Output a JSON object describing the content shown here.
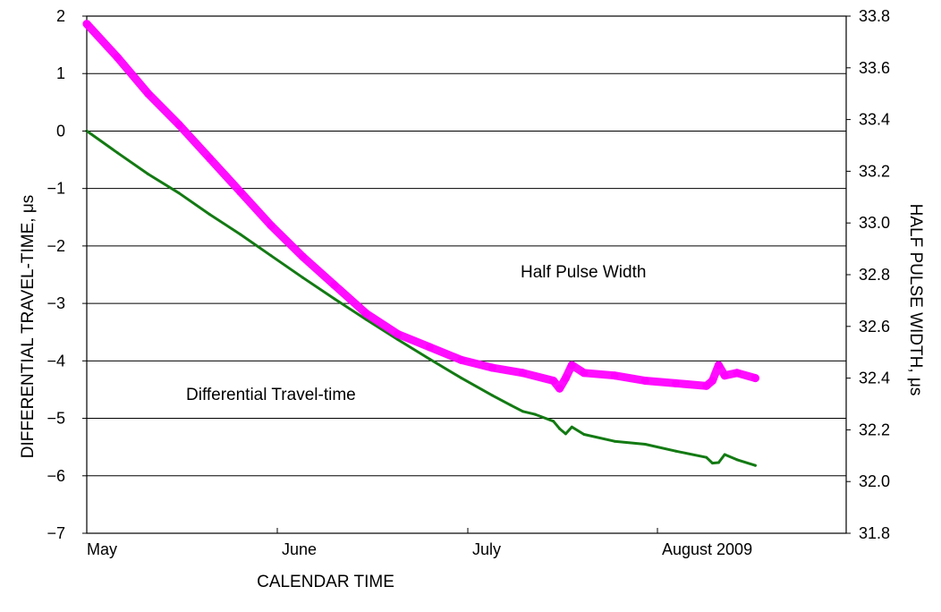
{
  "chart_data": {
    "type": "line",
    "xlabel": "CALENDAR TIME",
    "ylabel_left": "DIFFERENTIAL TRAVEL-TIME, μs",
    "ylabel_right": "HALF PULSE WIDTH, μs",
    "x_tick_labels": [
      "May",
      "June",
      "July",
      "August 2009"
    ],
    "x_unit": "days since start of May 2009",
    "x_range": [
      0,
      120
    ],
    "y_left_range": [
      -7,
      2
    ],
    "y_left_ticks": [
      "2",
      "1",
      "0",
      "−1",
      "−2",
      "−3",
      "−4",
      "−5",
      "−6",
      "−7"
    ],
    "y_right_range": [
      31.8,
      33.8
    ],
    "y_right_ticks": [
      "33.8",
      "33.6",
      "33.4",
      "33.2",
      "33.0",
      "32.8",
      "32.6",
      "32.4",
      "32.2",
      "32.0",
      "31.8"
    ],
    "grid": "horizontal",
    "annotations": {
      "half_pulse": "Half Pulse Width",
      "diff_travel": "Differential Travel-time"
    },
    "series": [
      {
        "name": "Differential Travel-time",
        "axis": "left",
        "color": "#137a13",
        "x": [
          0,
          5,
          10,
          15,
          20,
          25,
          30,
          35,
          40,
          45,
          50,
          55,
          60,
          65,
          68,
          70,
          72,
          75,
          76,
          77,
          78,
          80,
          85,
          90,
          95,
          100,
          101,
          102,
          103,
          105,
          108
        ],
        "y": [
          0,
          -0.38,
          -0.75,
          -1.08,
          -1.45,
          -1.8,
          -2.17,
          -2.55,
          -2.92,
          -3.28,
          -3.63,
          -3.97,
          -4.3,
          -4.6,
          -4.77,
          -4.88,
          -4.93,
          -5.05,
          -5.18,
          -5.27,
          -5.15,
          -5.28,
          -5.4,
          -5.45,
          -5.57,
          -5.68,
          -5.78,
          -5.77,
          -5.63,
          -5.72,
          -5.82
        ]
      },
      {
        "name": "Half Pulse Width",
        "axis": "right",
        "color": "#ff00ff",
        "x": [
          0,
          5,
          10,
          15,
          20,
          25,
          30,
          35,
          40,
          45,
          50,
          55,
          60,
          65,
          70,
          75,
          76,
          77,
          78,
          80,
          85,
          90,
          95,
          100,
          101,
          102,
          103,
          105,
          108
        ],
        "y": [
          33.77,
          33.64,
          33.5,
          33.38,
          33.25,
          33.12,
          32.99,
          32.87,
          32.76,
          32.65,
          32.57,
          32.52,
          32.47,
          32.44,
          32.42,
          32.39,
          32.36,
          32.4,
          32.45,
          32.42,
          32.41,
          32.39,
          32.38,
          32.37,
          32.39,
          32.45,
          32.41,
          32.42,
          32.4
        ]
      }
    ]
  }
}
